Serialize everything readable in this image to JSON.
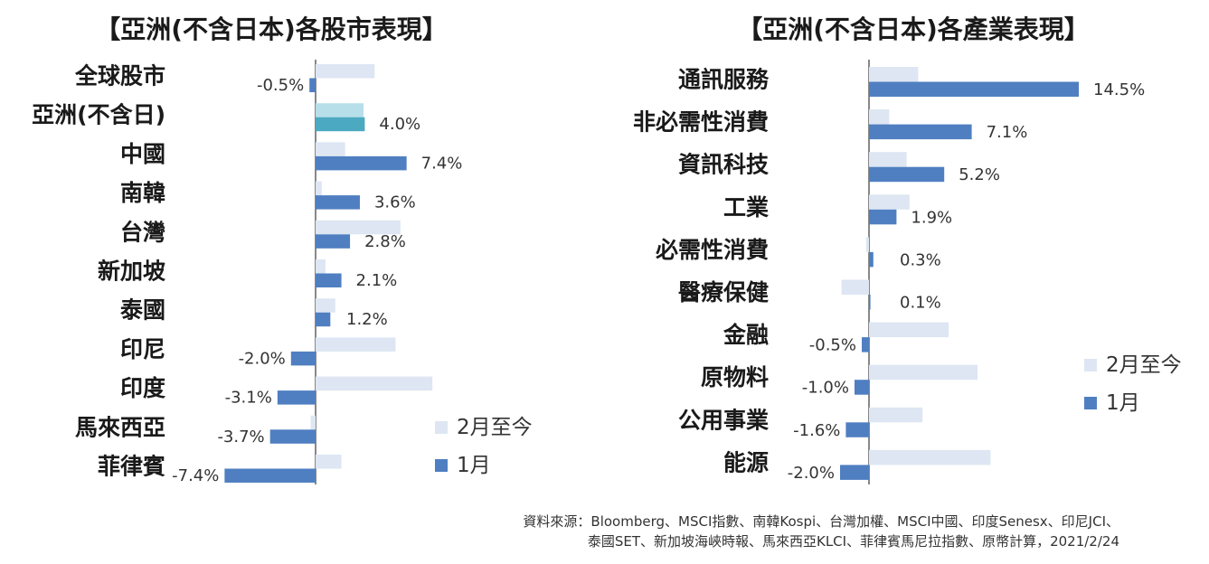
{
  "colors": {
    "ytd": "#dde6f2",
    "jan": "#4f7fc1",
    "asia_ytd": "#b7dfe9",
    "asia_jan": "#4ca9c2",
    "axis": "#888888"
  },
  "chart_data": [
    {
      "type": "bar",
      "title": "【亞洲(不含日本)各股市表現】",
      "categories": [
        "全球股市",
        "亞洲(不含日)",
        "中國",
        "南韓",
        "台灣",
        "新加坡",
        "泰國",
        "印尼",
        "印度",
        "馬來西亞",
        "菲律賓"
      ],
      "series": [
        {
          "name": "2月至今",
          "values": [
            4.8,
            3.9,
            2.4,
            0.5,
            6.9,
            0.8,
            1.6,
            6.5,
            9.5,
            -0.4,
            2.1
          ]
        },
        {
          "name": "1月",
          "values": [
            -0.5,
            4.0,
            7.4,
            3.6,
            2.8,
            2.1,
            1.2,
            -2.0,
            -3.1,
            -3.7,
            -7.4
          ]
        }
      ],
      "value_labels": [
        "-0.5%",
        "4.0%",
        "7.4%",
        "3.6%",
        "2.8%",
        "2.1%",
        "1.2%",
        "-2.0%",
        "-3.1%",
        "-3.7%",
        "-7.4%"
      ],
      "legend": [
        "2月至今",
        "1月"
      ]
    },
    {
      "type": "bar",
      "title": "【亞洲(不含日本)各產業表現】",
      "categories": [
        "通訊服務",
        "非必需性消費",
        "資訊科技",
        "工業",
        "必需性消費",
        "醫療保健",
        "金融",
        "原物料",
        "公用事業",
        "能源"
      ],
      "series": [
        {
          "name": "2月至今",
          "values": [
            3.4,
            1.4,
            2.6,
            2.8,
            -0.2,
            -1.9,
            5.5,
            7.5,
            3.7,
            8.4
          ]
        },
        {
          "name": "1月",
          "values": [
            14.5,
            7.1,
            5.2,
            1.9,
            0.3,
            0.1,
            -0.5,
            -1.0,
            -1.6,
            -2.0
          ]
        }
      ],
      "value_labels": [
        "14.5%",
        "7.1%",
        "5.2%",
        "1.9%",
        "0.3%",
        "0.1%",
        "-0.5%",
        "-1.0%",
        "-1.6%",
        "-2.0%"
      ],
      "legend": [
        "2月至今",
        "1月"
      ]
    }
  ],
  "source_line1": "資料來源：Bloomberg、MSCI指數、南韓Kospi、台灣加權、MSCI中國、印度Senesx、印尼JCI、",
  "source_line2": "泰國SET、新加坡海峽時報、馬來西亞KLCI、菲律賓馬尼拉指數、原幣計算，2021/2/24"
}
